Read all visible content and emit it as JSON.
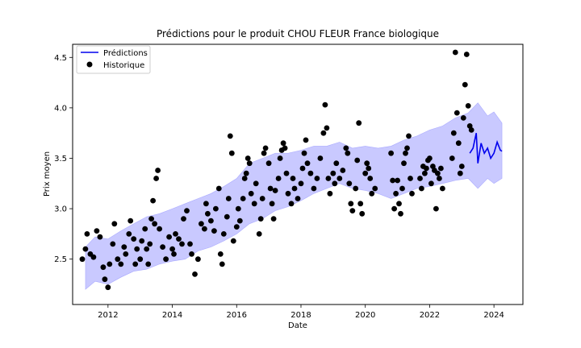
{
  "chart_data": {
    "type": "line",
    "title": "Prédictions pour le produit CHOU FLEUR France biologique",
    "xlabel": "Date",
    "ylabel": "Prix moyen",
    "xlim": [
      2010.9,
      2024.9
    ],
    "ylim": [
      2.05,
      4.63
    ],
    "x_ticks": [
      2012,
      2014,
      2016,
      2018,
      2020,
      2022,
      2024
    ],
    "y_ticks": [
      2.5,
      3.0,
      3.5,
      4.0,
      4.5
    ],
    "x_tick_labels": [
      "2012",
      "2014",
      "2016",
      "2018",
      "2020",
      "2022",
      "2024"
    ],
    "y_tick_labels": [
      "2.5",
      "3.0",
      "3.5",
      "4.0",
      "4.5"
    ],
    "legend": {
      "position": "top-left",
      "entries": [
        {
          "label": "Prédictions",
          "marker": "line",
          "color": "#0000ee"
        },
        {
          "label": "Historique",
          "marker": "dot",
          "color": "#000000"
        }
      ]
    },
    "series": [
      {
        "name": "Prédictions",
        "kind": "line",
        "color": "#0000ee",
        "x": [
          2023.25,
          2023.35,
          2023.45,
          2023.5,
          2023.6,
          2023.7,
          2023.8,
          2023.9,
          2024.0,
          2024.1,
          2024.2,
          2024.25
        ],
        "y": [
          3.55,
          3.6,
          3.75,
          3.45,
          3.65,
          3.55,
          3.6,
          3.5,
          3.55,
          3.66,
          3.58,
          3.57
        ]
      },
      {
        "name": "",
        "kind": "band",
        "color": "#4d4dff",
        "x": [
          2011.3,
          2011.6,
          2012.0,
          2012.4,
          2012.8,
          2013.2,
          2013.6,
          2014.0,
          2014.4,
          2014.8,
          2015.2,
          2015.6,
          2016.0,
          2016.4,
          2016.8,
          2017.2,
          2017.6,
          2018.0,
          2018.4,
          2018.8,
          2019.2,
          2019.6,
          2020.0,
          2020.4,
          2020.8,
          2021.2,
          2021.6,
          2022.0,
          2022.4,
          2022.8,
          2023.2,
          2023.5,
          2023.8,
          2024.0,
          2024.25
        ],
        "lower": [
          2.2,
          2.28,
          2.25,
          2.32,
          2.38,
          2.4,
          2.45,
          2.48,
          2.5,
          2.58,
          2.62,
          2.68,
          2.75,
          2.85,
          2.9,
          2.98,
          3.02,
          3.08,
          3.15,
          3.2,
          3.25,
          3.2,
          3.18,
          3.15,
          3.1,
          3.15,
          3.2,
          3.22,
          3.25,
          3.28,
          3.3,
          3.2,
          3.3,
          3.25,
          3.3
        ],
        "upper": [
          2.62,
          2.72,
          2.7,
          2.78,
          2.85,
          2.92,
          2.95,
          3.0,
          3.05,
          3.1,
          3.15,
          3.22,
          3.3,
          3.45,
          3.5,
          3.55,
          3.55,
          3.58,
          3.62,
          3.62,
          3.66,
          3.6,
          3.62,
          3.6,
          3.62,
          3.68,
          3.72,
          3.78,
          3.82,
          3.9,
          3.95,
          4.05,
          3.92,
          3.96,
          3.85
        ]
      },
      {
        "name": "Historique",
        "kind": "scatter",
        "color": "#000000",
        "points": [
          [
            2011.2,
            2.5
          ],
          [
            2011.3,
            2.6
          ],
          [
            2011.35,
            2.75
          ],
          [
            2011.45,
            2.55
          ],
          [
            2011.55,
            2.52
          ],
          [
            2011.65,
            2.78
          ],
          [
            2011.75,
            2.72
          ],
          [
            2011.85,
            2.42
          ],
          [
            2011.9,
            2.3
          ],
          [
            2012.0,
            2.22
          ],
          [
            2012.05,
            2.45
          ],
          [
            2012.15,
            2.65
          ],
          [
            2012.2,
            2.85
          ],
          [
            2012.3,
            2.5
          ],
          [
            2012.4,
            2.45
          ],
          [
            2012.5,
            2.62
          ],
          [
            2012.55,
            2.55
          ],
          [
            2012.65,
            2.75
          ],
          [
            2012.7,
            2.88
          ],
          [
            2012.8,
            2.7
          ],
          [
            2012.85,
            2.45
          ],
          [
            2012.9,
            2.6
          ],
          [
            2013.0,
            2.5
          ],
          [
            2013.05,
            2.68
          ],
          [
            2013.15,
            2.8
          ],
          [
            2013.2,
            2.6
          ],
          [
            2013.25,
            2.45
          ],
          [
            2013.3,
            2.65
          ],
          [
            2013.35,
            2.9
          ],
          [
            2013.4,
            3.08
          ],
          [
            2013.45,
            2.85
          ],
          [
            2013.5,
            3.3
          ],
          [
            2013.55,
            3.38
          ],
          [
            2013.6,
            2.8
          ],
          [
            2013.7,
            2.62
          ],
          [
            2013.8,
            2.5
          ],
          [
            2013.9,
            2.72
          ],
          [
            2014.0,
            2.6
          ],
          [
            2014.05,
            2.55
          ],
          [
            2014.1,
            2.75
          ],
          [
            2014.2,
            2.7
          ],
          [
            2014.3,
            2.65
          ],
          [
            2014.35,
            2.9
          ],
          [
            2014.45,
            2.98
          ],
          [
            2014.55,
            2.65
          ],
          [
            2014.6,
            2.55
          ],
          [
            2014.7,
            2.35
          ],
          [
            2014.8,
            2.5
          ],
          [
            2014.9,
            2.85
          ],
          [
            2015.0,
            2.8
          ],
          [
            2015.05,
            3.05
          ],
          [
            2015.1,
            2.95
          ],
          [
            2015.2,
            2.88
          ],
          [
            2015.3,
            2.78
          ],
          [
            2015.35,
            3.0
          ],
          [
            2015.45,
            3.2
          ],
          [
            2015.5,
            2.55
          ],
          [
            2015.55,
            2.45
          ],
          [
            2015.6,
            2.75
          ],
          [
            2015.7,
            2.92
          ],
          [
            2015.75,
            3.1
          ],
          [
            2015.8,
            3.72
          ],
          [
            2015.85,
            3.55
          ],
          [
            2015.9,
            2.68
          ],
          [
            2016.0,
            2.82
          ],
          [
            2016.05,
            3.0
          ],
          [
            2016.1,
            2.88
          ],
          [
            2016.2,
            3.1
          ],
          [
            2016.25,
            3.3
          ],
          [
            2016.3,
            3.35
          ],
          [
            2016.35,
            3.5
          ],
          [
            2016.4,
            3.45
          ],
          [
            2016.45,
            3.15
          ],
          [
            2016.55,
            3.05
          ],
          [
            2016.6,
            3.25
          ],
          [
            2016.7,
            2.75
          ],
          [
            2016.75,
            2.9
          ],
          [
            2016.8,
            3.1
          ],
          [
            2016.85,
            3.55
          ],
          [
            2016.9,
            3.6
          ],
          [
            2017.0,
            3.45
          ],
          [
            2017.05,
            3.2
          ],
          [
            2017.1,
            3.05
          ],
          [
            2017.15,
            2.9
          ],
          [
            2017.2,
            3.18
          ],
          [
            2017.3,
            3.3
          ],
          [
            2017.35,
            3.5
          ],
          [
            2017.4,
            3.58
          ],
          [
            2017.45,
            3.65
          ],
          [
            2017.5,
            3.6
          ],
          [
            2017.55,
            3.35
          ],
          [
            2017.6,
            3.15
          ],
          [
            2017.7,
            3.05
          ],
          [
            2017.75,
            3.3
          ],
          [
            2017.8,
            3.2
          ],
          [
            2017.9,
            3.1
          ],
          [
            2018.0,
            3.25
          ],
          [
            2018.05,
            3.4
          ],
          [
            2018.1,
            3.55
          ],
          [
            2018.15,
            3.68
          ],
          [
            2018.2,
            3.45
          ],
          [
            2018.3,
            3.35
          ],
          [
            2018.4,
            3.2
          ],
          [
            2018.5,
            3.3
          ],
          [
            2018.6,
            3.5
          ],
          [
            2018.7,
            3.75
          ],
          [
            2018.75,
            4.03
          ],
          [
            2018.8,
            3.8
          ],
          [
            2018.85,
            3.3
          ],
          [
            2018.9,
            3.15
          ],
          [
            2019.0,
            3.35
          ],
          [
            2019.05,
            3.25
          ],
          [
            2019.1,
            3.45
          ],
          [
            2019.2,
            3.3
          ],
          [
            2019.3,
            3.38
          ],
          [
            2019.4,
            3.6
          ],
          [
            2019.45,
            3.55
          ],
          [
            2019.5,
            3.25
          ],
          [
            2019.55,
            3.05
          ],
          [
            2019.6,
            2.98
          ],
          [
            2019.7,
            3.2
          ],
          [
            2019.75,
            3.48
          ],
          [
            2019.8,
            3.85
          ],
          [
            2019.85,
            3.05
          ],
          [
            2019.9,
            2.95
          ],
          [
            2020.0,
            3.35
          ],
          [
            2020.05,
            3.45
          ],
          [
            2020.1,
            3.4
          ],
          [
            2020.15,
            3.3
          ],
          [
            2020.2,
            3.15
          ],
          [
            2020.3,
            3.2
          ],
          [
            2020.8,
            3.55
          ],
          [
            2020.85,
            3.28
          ],
          [
            2020.9,
            3.0
          ],
          [
            2020.95,
            3.15
          ],
          [
            2021.0,
            3.28
          ],
          [
            2021.05,
            3.05
          ],
          [
            2021.1,
            2.95
          ],
          [
            2021.15,
            3.2
          ],
          [
            2021.2,
            3.45
          ],
          [
            2021.25,
            3.55
          ],
          [
            2021.3,
            3.6
          ],
          [
            2021.35,
            3.72
          ],
          [
            2021.4,
            3.3
          ],
          [
            2021.45,
            3.15
          ],
          [
            2021.7,
            3.3
          ],
          [
            2021.75,
            3.2
          ],
          [
            2021.8,
            3.42
          ],
          [
            2021.85,
            3.35
          ],
          [
            2021.9,
            3.4
          ],
          [
            2021.95,
            3.48
          ],
          [
            2022.0,
            3.5
          ],
          [
            2022.05,
            3.25
          ],
          [
            2022.1,
            3.42
          ],
          [
            2022.15,
            3.38
          ],
          [
            2022.2,
            3.0
          ],
          [
            2022.25,
            3.35
          ],
          [
            2022.3,
            3.3
          ],
          [
            2022.35,
            3.4
          ],
          [
            2022.4,
            3.2
          ],
          [
            2022.7,
            3.5
          ],
          [
            2022.75,
            3.75
          ],
          [
            2022.8,
            4.55
          ],
          [
            2022.85,
            3.95
          ],
          [
            2022.9,
            3.65
          ],
          [
            2022.95,
            3.35
          ],
          [
            2023.0,
            3.42
          ],
          [
            2023.05,
            3.9
          ],
          [
            2023.1,
            4.23
          ],
          [
            2023.15,
            4.53
          ],
          [
            2023.2,
            4.02
          ],
          [
            2023.25,
            3.82
          ],
          [
            2023.3,
            3.78
          ]
        ]
      }
    ]
  }
}
